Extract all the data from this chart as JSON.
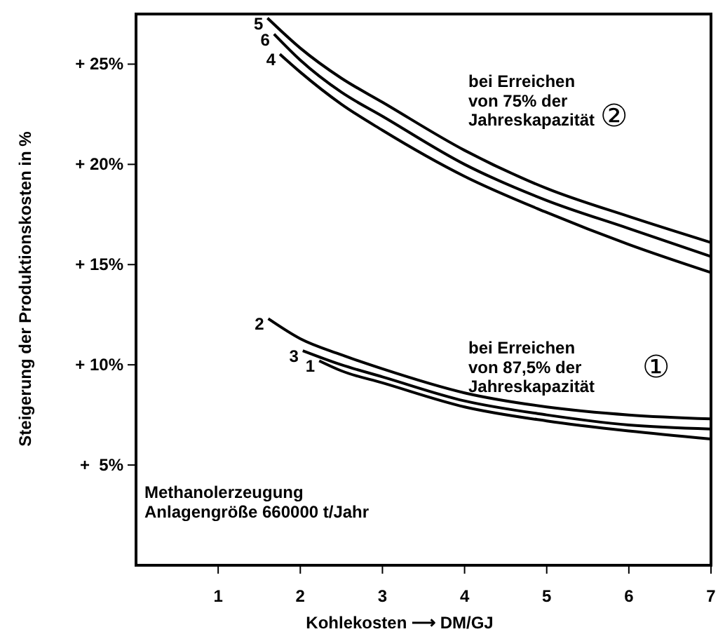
{
  "chart_data": {
    "type": "line",
    "xlabel": "Kohlekosten ⟶ DM/GJ",
    "ylabel": "Steigerung der Produktionskosten in %",
    "xlim": [
      0,
      7
    ],
    "ylim": [
      0,
      27.5
    ],
    "xticks": [
      1,
      2,
      3,
      4,
      5,
      6,
      7
    ],
    "yticks": [
      {
        "value": 5,
        "label": "+  5%"
      },
      {
        "value": 10,
        "label": "+ 10%"
      },
      {
        "value": 15,
        "label": "+ 15%"
      },
      {
        "value": 20,
        "label": "+ 20%"
      },
      {
        "value": 25,
        "label": "+ 25%"
      }
    ],
    "grid": false,
    "marker": "none",
    "line_style": "solid",
    "series": [
      {
        "name": "5",
        "color": "#000000",
        "x": [
          1.6,
          2,
          2.5,
          3,
          4,
          5,
          6,
          7
        ],
        "values": [
          27.3,
          25.8,
          24.3,
          23.1,
          20.7,
          18.8,
          17.4,
          16.1
        ]
      },
      {
        "name": "6",
        "color": "#000000",
        "x": [
          1.68,
          2,
          2.5,
          3,
          4,
          5,
          6,
          7
        ],
        "values": [
          26.5,
          25.2,
          23.6,
          22.4,
          20.0,
          18.2,
          16.8,
          15.4
        ]
      },
      {
        "name": "4",
        "color": "#000000",
        "x": [
          1.75,
          2,
          2.5,
          3,
          4,
          5,
          6,
          7
        ],
        "values": [
          25.5,
          24.6,
          23.0,
          21.7,
          19.4,
          17.6,
          16.0,
          14.6
        ]
      },
      {
        "name": "2",
        "color": "#000000",
        "x": [
          1.61,
          2,
          2.5,
          3,
          4,
          5,
          6,
          7
        ],
        "values": [
          12.3,
          11.3,
          10.5,
          9.8,
          8.6,
          7.9,
          7.5,
          7.3
        ]
      },
      {
        "name": "3",
        "color": "#000000",
        "x": [
          2.03,
          2.5,
          3,
          4,
          5,
          6,
          7
        ],
        "values": [
          10.7,
          10.0,
          9.4,
          8.2,
          7.5,
          7.0,
          6.8
        ]
      },
      {
        "name": "1",
        "color": "#000000",
        "x": [
          2.23,
          2.5,
          3,
          4,
          5,
          6,
          7
        ],
        "values": [
          10.2,
          9.7,
          9.1,
          7.9,
          7.2,
          6.7,
          6.3
        ]
      }
    ],
    "annotations": [
      "bei Erreichen\nvon 75% der\nJahreskapazität",
      "②",
      "bei Erreichen\nvon 87,5% der\nJahreskapazität",
      "①",
      "Methanolerzeugung\nAnlagengröße 660000 t/Jahr"
    ]
  }
}
